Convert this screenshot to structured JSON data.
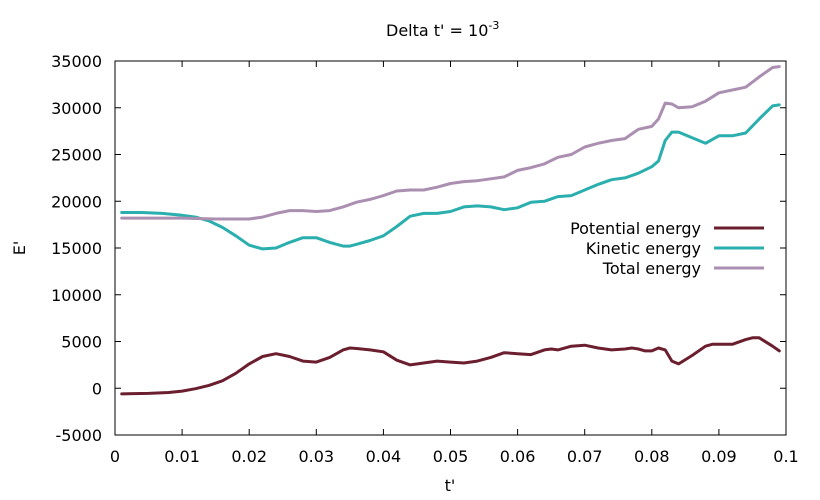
{
  "chart_data": {
    "type": "line",
    "title_main": "Delta t' = 10",
    "title_exp": "-3",
    "xlabel": "t'",
    "ylabel": "E'",
    "xlim": [
      0,
      0.1
    ],
    "ylim": [
      -5000,
      35000
    ],
    "xticks": [
      0,
      0.01,
      0.02,
      0.03,
      0.04,
      0.05,
      0.06,
      0.07,
      0.08,
      0.09,
      0.1
    ],
    "xtick_labels": [
      "0",
      "0.01",
      "0.02",
      "0.03",
      "0.04",
      "0.05",
      "0.06",
      "0.07",
      "0.08",
      "0.09",
      "0.1"
    ],
    "yticks": [
      -5000,
      0,
      5000,
      10000,
      15000,
      20000,
      25000,
      30000,
      35000
    ],
    "ytick_labels": [
      "-5000",
      "0",
      "5000",
      "10000",
      "15000",
      "20000",
      "25000",
      "30000",
      "35000"
    ],
    "grid": false,
    "legend_position": "right",
    "series": [
      {
        "name": "Potential energy",
        "color": "#6b1f2e",
        "x": [
          0.001,
          0.005,
          0.008,
          0.01,
          0.012,
          0.014,
          0.016,
          0.018,
          0.02,
          0.022,
          0.024,
          0.026,
          0.028,
          0.03,
          0.032,
          0.034,
          0.035,
          0.036,
          0.038,
          0.04,
          0.042,
          0.044,
          0.046,
          0.048,
          0.05,
          0.052,
          0.054,
          0.056,
          0.058,
          0.06,
          0.062,
          0.064,
          0.065,
          0.066,
          0.068,
          0.07,
          0.072,
          0.074,
          0.076,
          0.077,
          0.078,
          0.079,
          0.08,
          0.081,
          0.082,
          0.083,
          0.084,
          0.086,
          0.088,
          0.089,
          0.09,
          0.092,
          0.094,
          0.095,
          0.096,
          0.098,
          0.099
        ],
        "y": [
          -600,
          -550,
          -450,
          -300,
          -50,
          300,
          800,
          1600,
          2600,
          3400,
          3700,
          3400,
          2900,
          2800,
          3300,
          4100,
          4300,
          4250,
          4100,
          3900,
          3000,
          2500,
          2700,
          2900,
          2800,
          2700,
          2900,
          3300,
          3800,
          3700,
          3600,
          4100,
          4200,
          4100,
          4500,
          4600,
          4300,
          4100,
          4200,
          4300,
          4200,
          4000,
          4000,
          4300,
          4100,
          2900,
          2600,
          3500,
          4500,
          4700,
          4700,
          4700,
          5200,
          5400,
          5400,
          4500,
          4000
        ]
      },
      {
        "name": "Kinetic energy",
        "color": "#2aaeae",
        "x": [
          0.001,
          0.004,
          0.007,
          0.01,
          0.012,
          0.014,
          0.016,
          0.018,
          0.02,
          0.022,
          0.024,
          0.026,
          0.028,
          0.03,
          0.032,
          0.034,
          0.035,
          0.036,
          0.038,
          0.04,
          0.042,
          0.044,
          0.046,
          0.048,
          0.05,
          0.052,
          0.054,
          0.056,
          0.058,
          0.06,
          0.062,
          0.064,
          0.066,
          0.068,
          0.07,
          0.072,
          0.074,
          0.076,
          0.078,
          0.08,
          0.081,
          0.082,
          0.083,
          0.084,
          0.086,
          0.088,
          0.09,
          0.092,
          0.094,
          0.096,
          0.098,
          0.099
        ],
        "y": [
          18800,
          18800,
          18700,
          18500,
          18300,
          17900,
          17200,
          16300,
          15300,
          14900,
          15000,
          15600,
          16100,
          16100,
          15600,
          15200,
          15200,
          15400,
          15800,
          16300,
          17300,
          18400,
          18700,
          18700,
          18900,
          19400,
          19500,
          19400,
          19100,
          19300,
          19900,
          20000,
          20500,
          20600,
          21200,
          21800,
          22300,
          22500,
          23000,
          23700,
          24300,
          26500,
          27400,
          27400,
          26800,
          26200,
          27000,
          27000,
          27300,
          28800,
          30200,
          30300
        ]
      },
      {
        "name": "Total energy",
        "color": "#ab8fb1",
        "x": [
          0.001,
          0.005,
          0.01,
          0.015,
          0.02,
          0.022,
          0.024,
          0.026,
          0.028,
          0.03,
          0.032,
          0.034,
          0.036,
          0.038,
          0.04,
          0.042,
          0.044,
          0.046,
          0.048,
          0.05,
          0.052,
          0.054,
          0.056,
          0.058,
          0.06,
          0.062,
          0.064,
          0.066,
          0.068,
          0.07,
          0.072,
          0.074,
          0.076,
          0.078,
          0.08,
          0.081,
          0.082,
          0.083,
          0.084,
          0.086,
          0.088,
          0.09,
          0.092,
          0.094,
          0.096,
          0.098,
          0.099
        ],
        "y": [
          18200,
          18200,
          18200,
          18100,
          18100,
          18300,
          18700,
          19000,
          19000,
          18900,
          19000,
          19400,
          19900,
          20200,
          20600,
          21100,
          21200,
          21200,
          21500,
          21900,
          22100,
          22200,
          22400,
          22600,
          23300,
          23600,
          24000,
          24700,
          25000,
          25800,
          26200,
          26500,
          26700,
          27700,
          28000,
          28800,
          30500,
          30400,
          30000,
          30100,
          30700,
          31600,
          31900,
          32200,
          33300,
          34300,
          34400
        ]
      }
    ]
  }
}
